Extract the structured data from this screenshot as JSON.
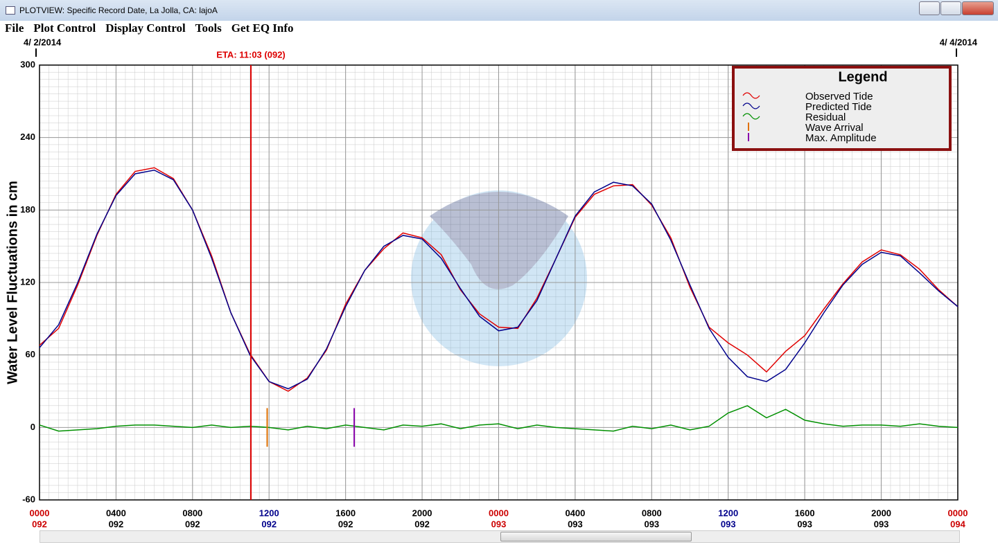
{
  "window": {
    "title": "PLOTVIEW: Specific Record Date, La Jolla, CA: lajoA",
    "menu": [
      "File",
      "Plot Control",
      "Display Control",
      "Tools",
      "Get EQ Info"
    ]
  },
  "chart_data": {
    "type": "line",
    "ylabel": "Water Level Fluctuations in cm",
    "date_start": "4/ 2/2014",
    "date_end": "4/ 4/2014",
    "x": [
      0,
      1,
      2,
      3,
      4,
      5,
      6,
      7,
      8,
      9,
      10,
      11,
      12,
      13,
      14,
      15,
      16,
      17,
      18,
      19,
      20,
      21,
      22,
      23,
      24,
      25,
      26,
      27,
      28,
      29,
      30,
      31,
      32,
      33,
      34,
      35,
      36,
      37,
      38,
      39,
      40,
      41,
      42,
      43,
      44,
      45,
      46,
      47,
      48
    ],
    "xlim": [
      0,
      48
    ],
    "xticks": [
      {
        "value": 0,
        "label": "0000"
      },
      {
        "value": 4,
        "label": "0400"
      },
      {
        "value": 8,
        "label": "0800"
      },
      {
        "value": 12,
        "label": "1200"
      },
      {
        "value": 16,
        "label": "1600"
      },
      {
        "value": 20,
        "label": "2000"
      },
      {
        "value": 24,
        "label": "0000"
      },
      {
        "value": 28,
        "label": "0400"
      },
      {
        "value": 32,
        "label": "0800"
      },
      {
        "value": 36,
        "label": "1200"
      },
      {
        "value": 40,
        "label": "1600"
      },
      {
        "value": 44,
        "label": "2000"
      },
      {
        "value": 48,
        "label": "0000"
      }
    ],
    "xtick_sublabels": [
      "092",
      "092",
      "092",
      "092",
      "092",
      "092",
      "093",
      "093",
      "093",
      "093",
      "093",
      "093",
      "094"
    ],
    "xtick_colors": [
      "#cc0000",
      "#000000",
      "#000000",
      "#00008b",
      "#000000",
      "#000000",
      "#cc0000",
      "#000000",
      "#000000",
      "#00008b",
      "#000000",
      "#000000",
      "#cc0000"
    ],
    "ylim": [
      -60,
      300
    ],
    "yticks": [
      -60,
      0,
      60,
      120,
      180,
      240,
      300
    ],
    "grid": true,
    "series": [
      {
        "name": "Observed Tide",
        "color": "#e00000",
        "values": [
          68,
          82,
          118,
          159,
          193,
          212,
          215,
          206,
          180,
          142,
          95,
          61,
          38,
          30,
          41,
          64,
          102,
          130,
          148,
          161,
          157,
          143,
          114,
          94,
          83,
          82,
          107,
          140,
          174,
          193,
          200,
          201,
          184,
          157,
          116,
          83,
          70,
          60,
          46,
          63,
          76,
          98,
          119,
          137,
          147,
          143,
          131,
          114,
          100
        ]
      },
      {
        "name": "Predicted Tide",
        "color": "#00008b",
        "values": [
          66,
          85,
          120,
          160,
          192,
          210,
          213,
          205,
          180,
          140,
          95,
          60,
          38,
          32,
          40,
          65,
          100,
          130,
          150,
          159,
          156,
          140,
          115,
          92,
          80,
          83,
          105,
          140,
          175,
          195,
          203,
          200,
          185,
          155,
          118,
          82,
          58,
          42,
          38,
          48,
          70,
          95,
          118,
          135,
          145,
          142,
          128,
          113,
          100
        ]
      },
      {
        "name": "Residual",
        "color": "#009000",
        "values": [
          2,
          -3,
          -2,
          -1,
          1,
          2,
          2,
          1,
          0,
          2,
          0,
          1,
          0,
          -2,
          1,
          -1,
          2,
          0,
          -2,
          2,
          1,
          3,
          -1,
          2,
          3,
          -1,
          2,
          0,
          -1,
          -2,
          -3,
          1,
          -1,
          2,
          -2,
          1,
          12,
          18,
          8,
          15,
          6,
          3,
          1,
          2,
          2,
          1,
          3,
          1,
          0
        ]
      }
    ],
    "markers": [
      {
        "name": "Wave Arrival",
        "color": "#e07000",
        "x": 11.9,
        "range": [
          16,
          -16
        ]
      },
      {
        "name": "Max. Amplitude",
        "color": "#8800aa",
        "x": 16.45,
        "range": [
          16,
          -16
        ]
      }
    ],
    "eta": {
      "label": "ETA: 11:03 (092)",
      "x": 11.05,
      "color": "#dd0000"
    },
    "legend": {
      "title": "Legend",
      "position": "upper right"
    }
  }
}
